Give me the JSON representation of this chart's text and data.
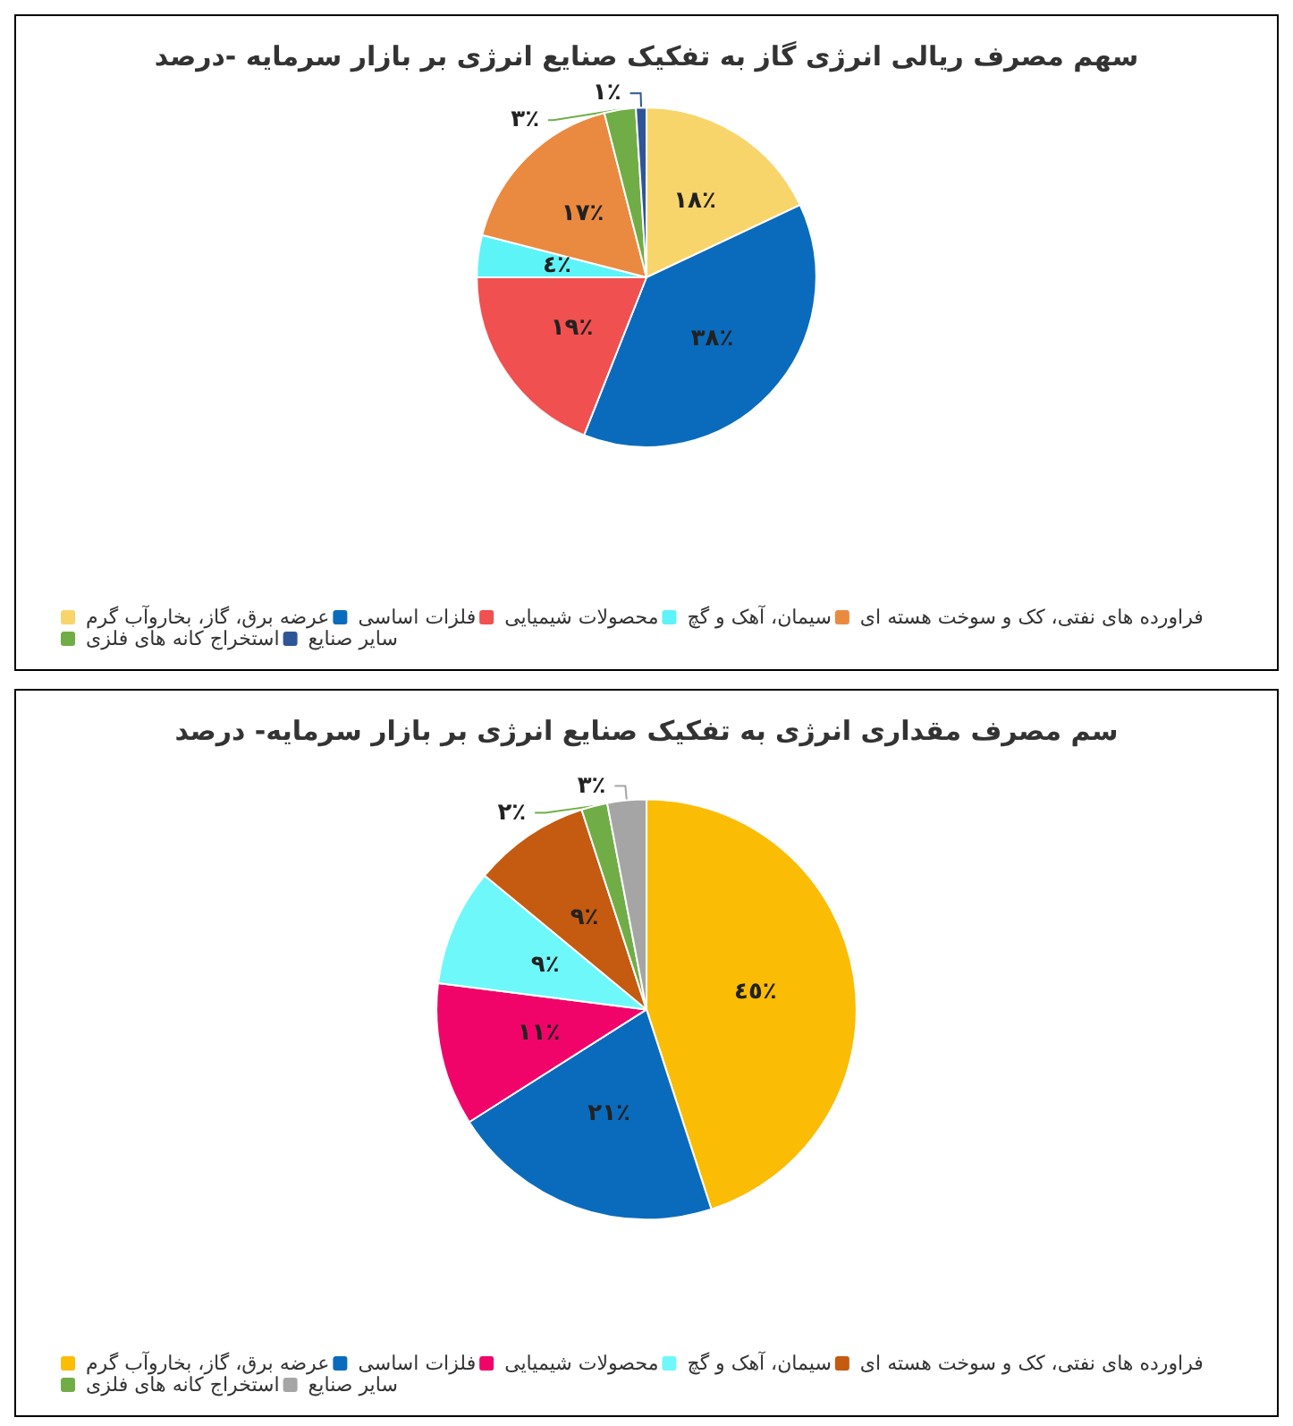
{
  "chart_data": [
    {
      "type": "pie",
      "title": "سهم مصرف ریالی انرژی گاز به تفکیک صنایع انرژی بر بازار سرمایه -درصد",
      "categories": [
        "عرضه برق، گاز، بخاروآب گرم",
        "فلزات اساسی",
        "محصولات شیمیایی",
        "سیمان، آهک و گچ",
        "فراورده های نفتی، کک و سوخت هسته ای",
        "استخراج کانه های فلزی",
        "سایر صنایع"
      ],
      "values": [
        18,
        38,
        19,
        4,
        17,
        3,
        1
      ],
      "value_labels": [
        "١٨٪",
        "٣٨٪",
        "١٩٪",
        "٤٪",
        "١٧٪",
        "٣٪",
        "١٪"
      ],
      "colors": [
        "#f8d56a",
        "#0a6bbd",
        "#f05050",
        "#5df4f8",
        "#ea8a40",
        "#70ad47",
        "#2f5597"
      ],
      "legend": "bottom"
    },
    {
      "type": "pie",
      "title": "سم مصرف مقداری انرژی به تفکیک صنایع انرژی بر بازار سرمایه- درصد",
      "categories": [
        "عرضه برق، گاز، بخاروآب گرم",
        "فلزات اساسی",
        "محصولات شیمیایی",
        "سیمان، آهک و گچ",
        "فراورده های نفتی، کک و سوخت هسته ای",
        "استخراج کانه های فلزی",
        "سایر صنایع"
      ],
      "values": [
        45,
        21,
        11,
        9,
        9,
        2,
        3
      ],
      "value_labels": [
        "٤٥٪",
        "٢١٪",
        "١١٪",
        "٩٪",
        "٩٪",
        "٢٪",
        "٣٪"
      ],
      "colors": [
        "#fbbc05",
        "#0a6bbd",
        "#f0046a",
        "#6ff8fa",
        "#c55a11",
        "#70ad47",
        "#a5a5a5"
      ],
      "legend": "bottom"
    }
  ]
}
